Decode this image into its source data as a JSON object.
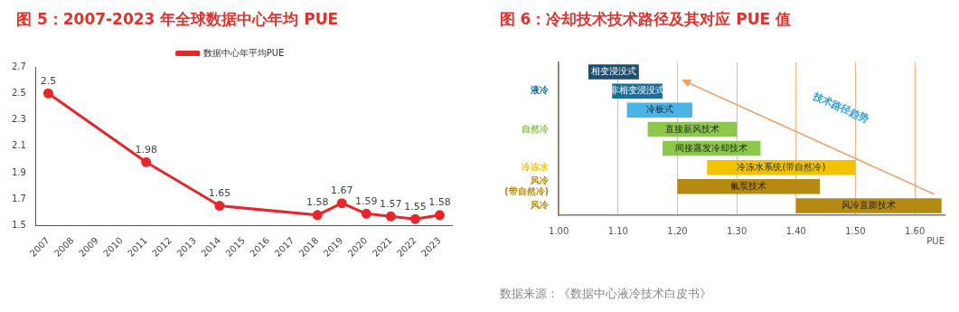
{
  "chart_data": [
    {
      "type": "line",
      "title": "图 5：2007-2023 年全球数据中心年均 PUE",
      "categories": [
        "2007",
        "2008",
        "2009",
        "2010",
        "2011",
        "2012",
        "2013",
        "2014",
        "2015",
        "2016",
        "2017",
        "2018",
        "2019",
        "2020",
        "2021",
        "2022",
        "2023"
      ],
      "series": [
        {
          "name": "数据中心年平均PUE",
          "color": "#e8262a",
          "values": [
            2.5,
            null,
            null,
            null,
            1.98,
            null,
            null,
            1.65,
            null,
            null,
            null,
            1.58,
            1.67,
            1.59,
            1.57,
            1.55,
            1.58
          ]
        }
      ],
      "ylim": [
        1.5,
        2.7
      ],
      "yticks": [
        1.5,
        1.7,
        1.9,
        2.1,
        2.3,
        2.5,
        2.7
      ],
      "marker": "circle",
      "data_labels": true,
      "legend": "top",
      "grid": false
    },
    {
      "type": "bar",
      "orientation": "horizontal",
      "title": "图 6：冷却技术技术路径及其对应 PUE 值",
      "xlabel": "PUE",
      "categories": [
        null,
        "液冷",
        null,
        "自然冷",
        null,
        "冷冻水",
        "风冷\n(带自然冷)",
        "风冷"
      ],
      "value_labels": [
        "相变浸没式",
        "非相变浸没式",
        "冷板式",
        "直接新风技术",
        "间接蒸发冷却技术",
        "冷冻水系统(带自然冷)",
        "氟泵技术",
        "风冷直膨技术"
      ],
      "base": [
        1.05,
        1.09,
        1.115,
        1.15,
        1.175,
        1.25,
        1.2,
        1.4
      ],
      "values": [
        0.085,
        0.085,
        0.11,
        0.15,
        0.165,
        0.25,
        0.24,
        0.245
      ],
      "colors": [
        "#1d4e6e",
        "#1f6e9a",
        "#4ab4e6",
        "#8cc84b",
        "#8cc84b",
        "#f2c200",
        "#b58a10",
        "#b58a10"
      ],
      "xlim": [
        1.0,
        1.65
      ],
      "xticks": [
        {
          "value": 1.0,
          "label": "1.00"
        },
        {
          "value": 1.1,
          "label": "1.10"
        },
        {
          "value": 1.2,
          "label": "1.20"
        },
        {
          "value": 1.3,
          "label": "1.30"
        },
        {
          "value": 1.4,
          "label": "1.40"
        },
        {
          "value": 1.5,
          "label": "1.50"
        },
        {
          "value": 1.6,
          "label": "1.60"
        }
      ],
      "grid": "x",
      "legend": false,
      "annotations": [
        "技术路径趋势",
        "数据来源：《数据中心液冷技术白皮书》"
      ]
    }
  ]
}
